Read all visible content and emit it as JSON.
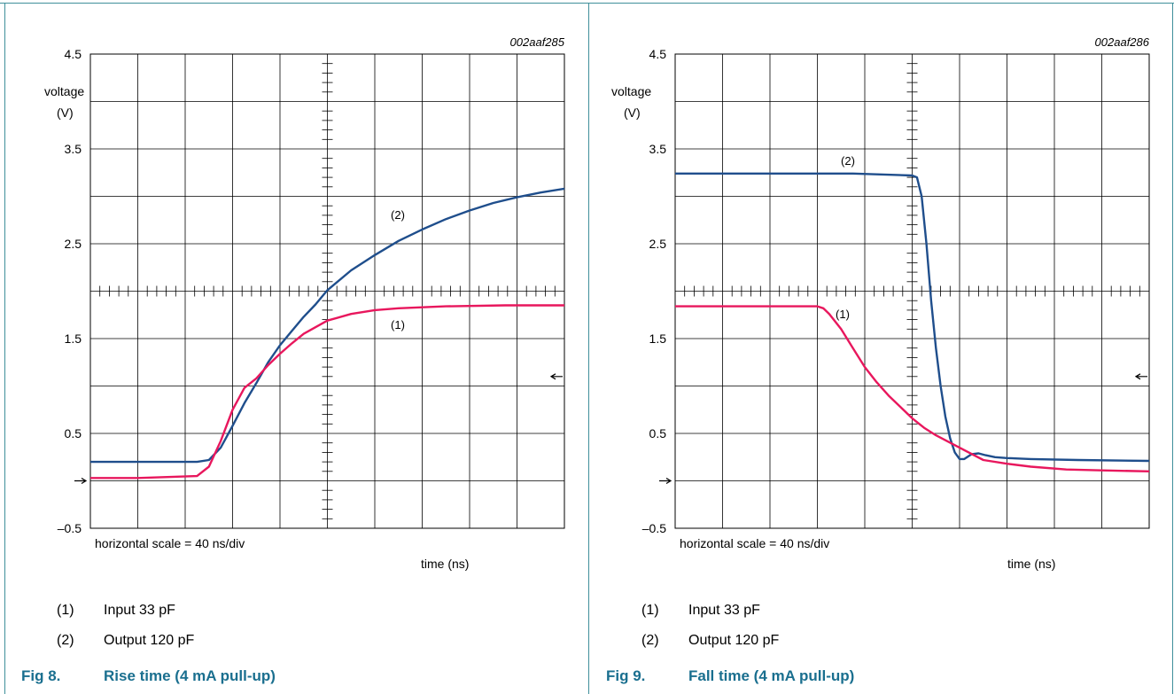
{
  "panels": [
    {
      "id": "rise",
      "code": "002aaf285",
      "ylabel": [
        "voltage",
        "(V)"
      ],
      "xlabel": "time (ns)",
      "scale_note": "horizontal scale = 40 ns/div",
      "figure_number": "Fig 8.",
      "figure_title": "Rise time (4 mA pull-up)",
      "legend": [
        {
          "num": "(1)",
          "text": "Input 33 pF"
        },
        {
          "num": "(2)",
          "text": "Output 120 pF"
        }
      ],
      "curve_labels": [
        {
          "text": "(2)",
          "series": 1
        },
        {
          "text": "(1)",
          "series": 0
        }
      ]
    },
    {
      "id": "fall",
      "code": "002aaf286",
      "ylabel": [
        "voltage",
        "(V)"
      ],
      "xlabel": "time (ns)",
      "scale_note": "horizontal scale = 40 ns/div",
      "figure_number": "Fig 9.",
      "figure_title": "Fall time (4 mA pull-up)",
      "legend": [
        {
          "num": "(1)",
          "text": "Input 33 pF"
        },
        {
          "num": "(2)",
          "text": "Output 120 pF"
        }
      ],
      "curve_labels": [
        {
          "text": "(2)",
          "series": 1
        },
        {
          "text": "(1)",
          "series": 0
        }
      ]
    }
  ],
  "chart_data": [
    {
      "type": "line",
      "title": "Rise time (4 mA pull-up)",
      "xlabel": "time (ns)",
      "ylabel": "voltage (V)",
      "ylim": [
        -0.5,
        4.5
      ],
      "yticks": [
        4.5,
        3.5,
        2.5,
        1.5,
        0.5,
        -0.5
      ],
      "ytick_labels": [
        "4.5",
        "3.5",
        "2.5",
        "1.5",
        "0.5",
        "–0.5"
      ],
      "xlim": [
        0,
        400
      ],
      "grid": true,
      "colors": [
        "#e8175d",
        "#1f4e8c"
      ],
      "series": [
        {
          "name": "Input 33 pF",
          "x": [
            0,
            40,
            90,
            100,
            110,
            120,
            130,
            140,
            150,
            160,
            170,
            180,
            200,
            220,
            240,
            260,
            300,
            350,
            400
          ],
          "y": [
            0.03,
            0.03,
            0.05,
            0.15,
            0.42,
            0.75,
            0.98,
            1.08,
            1.22,
            1.34,
            1.45,
            1.55,
            1.69,
            1.76,
            1.8,
            1.82,
            1.84,
            1.85,
            1.85
          ]
        },
        {
          "name": "Output 120 pF",
          "x": [
            0,
            50,
            90,
            100,
            110,
            120,
            130,
            140,
            150,
            160,
            170,
            180,
            190,
            200,
            220,
            240,
            260,
            280,
            300,
            320,
            340,
            360,
            380,
            400
          ],
          "y": [
            0.2,
            0.2,
            0.2,
            0.22,
            0.35,
            0.58,
            0.82,
            1.03,
            1.25,
            1.43,
            1.58,
            1.73,
            1.86,
            2.01,
            2.22,
            2.38,
            2.53,
            2.65,
            2.76,
            2.85,
            2.93,
            2.99,
            3.04,
            3.08
          ]
        }
      ]
    },
    {
      "type": "line",
      "title": "Fall time (4 mA pull-up)",
      "xlabel": "time (ns)",
      "ylabel": "voltage (V)",
      "ylim": [
        -0.5,
        4.5
      ],
      "yticks": [
        4.5,
        3.5,
        2.5,
        1.5,
        0.5,
        -0.5
      ],
      "ytick_labels": [
        "4.5",
        "3.5",
        "2.5",
        "1.5",
        "0.5",
        "–0.5"
      ],
      "xlim": [
        0,
        400
      ],
      "grid": true,
      "colors": [
        "#e8175d",
        "#1f4e8c"
      ],
      "series": [
        {
          "name": "Input 33 pF",
          "x": [
            0,
            60,
            120,
            125,
            130,
            140,
            150,
            160,
            170,
            180,
            190,
            200,
            210,
            220,
            240,
            260,
            280,
            300,
            330,
            360,
            400
          ],
          "y": [
            1.84,
            1.84,
            1.84,
            1.82,
            1.76,
            1.6,
            1.4,
            1.2,
            1.04,
            0.9,
            0.78,
            0.66,
            0.56,
            0.48,
            0.35,
            0.22,
            0.18,
            0.15,
            0.12,
            0.11,
            0.1
          ]
        },
        {
          "name": "Output 120 pF",
          "x": [
            0,
            100,
            150,
            200,
            204,
            208,
            212,
            216,
            220,
            224,
            228,
            232,
            236,
            240,
            244,
            250,
            256,
            262,
            270,
            280,
            300,
            340,
            400
          ],
          "y": [
            3.24,
            3.24,
            3.24,
            3.22,
            3.2,
            3.0,
            2.5,
            1.9,
            1.4,
            1.0,
            0.68,
            0.45,
            0.3,
            0.23,
            0.23,
            0.28,
            0.29,
            0.27,
            0.25,
            0.24,
            0.23,
            0.22,
            0.21
          ]
        }
      ]
    }
  ]
}
